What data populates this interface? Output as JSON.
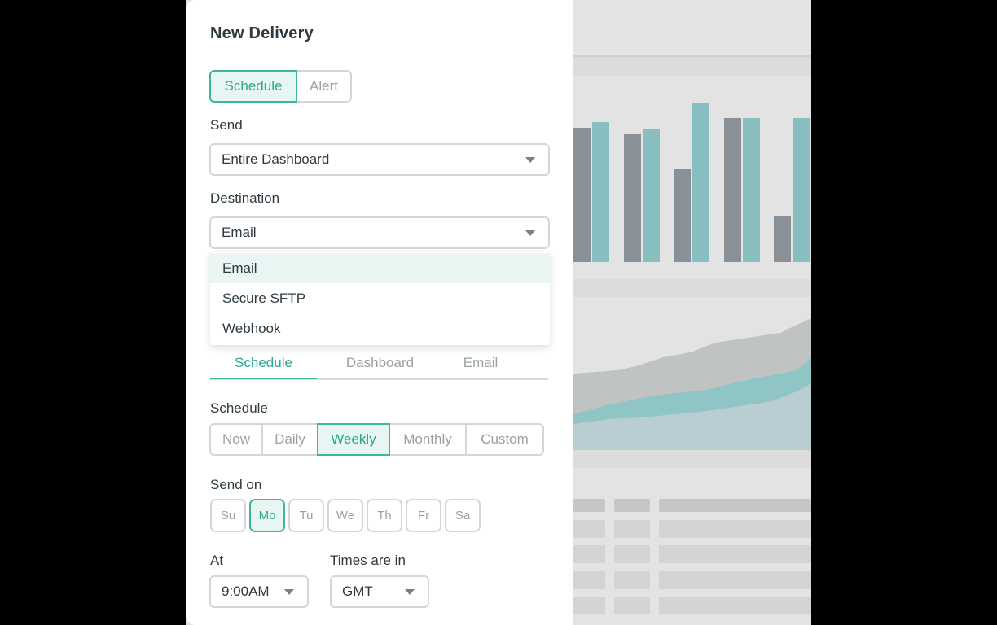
{
  "modal": {
    "title": "New Delivery",
    "type_toggle": [
      {
        "label": "Schedule",
        "active": true
      },
      {
        "label": "Alert",
        "active": false
      }
    ],
    "send": {
      "label": "Send",
      "value": "Entire Dashboard"
    },
    "destination": {
      "label": "Destination",
      "value": "Email",
      "options": [
        "Email",
        "Secure SFTP",
        "Webhook"
      ],
      "highlighted": "Email"
    },
    "tabs": [
      {
        "label": "Schedule",
        "active": true
      },
      {
        "label": "Dashboard",
        "active": false
      },
      {
        "label": "Email",
        "active": false
      }
    ],
    "schedule": {
      "label": "Schedule",
      "options": [
        {
          "label": "Now",
          "active": false
        },
        {
          "label": "Daily",
          "active": false
        },
        {
          "label": "Weekly",
          "active": true
        },
        {
          "label": "Monthly",
          "active": false
        },
        {
          "label": "Custom",
          "active": false
        }
      ]
    },
    "send_on": {
      "label": "Send on",
      "days": [
        {
          "label": "Su",
          "active": false
        },
        {
          "label": "Mo",
          "active": true
        },
        {
          "label": "Tu",
          "active": false
        },
        {
          "label": "We",
          "active": false
        },
        {
          "label": "Th",
          "active": false
        },
        {
          "label": "Fr",
          "active": false
        },
        {
          "label": "Sa",
          "active": false
        }
      ]
    },
    "at": {
      "label": "At",
      "value": "9:00AM"
    },
    "timezone": {
      "label": "Times are in",
      "value": "GMT"
    }
  },
  "colors": {
    "accent": "#3fb59d",
    "accent_bg": "#e7f6f3",
    "bar_gray": "#8a9196",
    "bar_teal": "#89bec1"
  },
  "background_chart": {
    "type": "bar",
    "series": [
      {
        "values": [
          165,
          157,
          114,
          177,
          57
        ]
      },
      {
        "values": [
          172,
          164,
          196,
          177,
          177
        ]
      }
    ]
  }
}
